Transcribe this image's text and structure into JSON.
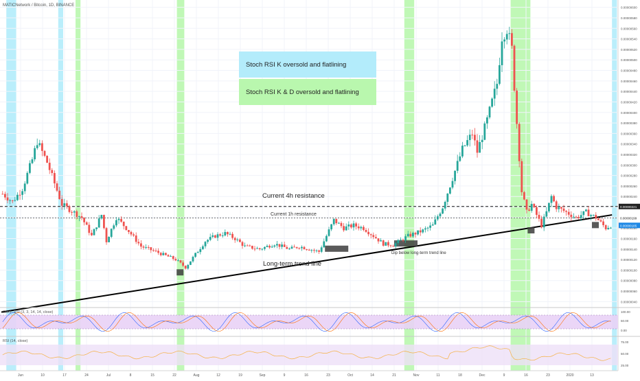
{
  "header": {
    "symbol": "MATICNetwork / Bitcoin, 1D, BINANCE"
  },
  "legend": {
    "k_label": "Stoch RSI K oversold and flatlining",
    "kd_label": "Stoch RSI K & D oversold and flatlining",
    "k_color": "#b3ecfb",
    "kd_color": "#b9f7ae"
  },
  "annotations": {
    "res4h": "Current 4h resistance",
    "res1h": "Current 1h resistance",
    "trend": "Long-term trend line",
    "dip": "Dip below long-term trend line"
  },
  "price_axis": {
    "ticks": [
      "0.00000600",
      "0.00000580",
      "0.00000560",
      "0.00000540",
      "0.00000520",
      "0.00000500",
      "0.00000480",
      "0.00000460",
      "0.00000440",
      "0.00000420",
      "0.00000400",
      "0.00000380",
      "0.00000360",
      "0.00000340",
      "0.00000320",
      "0.00000300",
      "0.00000280",
      "0.00000260",
      "0.00000240",
      "0.00000220",
      "0.00000200",
      "0.00000180",
      "0.00000160",
      "0.00000140",
      "0.00000120",
      "0.00000100",
      "0.00000080",
      "0.00000060",
      "0.00000040"
    ],
    "badge_4h": "0.00000221",
    "badge_1h": "0.00000199",
    "badge_last": "0.00000185"
  },
  "x_axis": {
    "labels": [
      "Jun",
      "10",
      "17",
      "24",
      "Jul",
      "8",
      "15",
      "22",
      "Aug",
      "12",
      "19",
      "Sep",
      "9",
      "16",
      "23",
      "Oct",
      "14",
      "21",
      "Nov",
      "11",
      "18",
      "Dec",
      "9",
      "16",
      "23",
      "2020",
      "13"
    ]
  },
  "stoch_panel": {
    "title": "Stoch RSI (3, 3, 14, 14, close)",
    "ticks": [
      "100.00",
      "50.00",
      "0.00"
    ]
  },
  "rsi_panel": {
    "title": "RSI (14, close)",
    "ticks": [
      "75.00",
      "50.00",
      "25.00"
    ]
  },
  "chart_data": {
    "type": "candlestick",
    "title": "MATICNetwork / Bitcoin, 1D, BINANCE",
    "ylim": [
      3e-07,
      6.1e-06
    ],
    "price_path": [
      [
        0,
        2.45e-06
      ],
      [
        4,
        2.3e-06
      ],
      [
        8,
        2.55e-06
      ],
      [
        12,
        3.1e-06
      ],
      [
        14,
        3.45e-06
      ],
      [
        18,
        3.05e-06
      ],
      [
        24,
        2.25e-06
      ],
      [
        32,
        2e-06
      ],
      [
        36,
        1.65e-06
      ],
      [
        40,
        2.05e-06
      ],
      [
        42,
        1.55e-06
      ],
      [
        46,
        2e-06
      ],
      [
        50,
        1.8e-06
      ],
      [
        56,
        1.45e-06
      ],
      [
        62,
        1.35e-06
      ],
      [
        70,
        1.2e-06
      ],
      [
        74,
        1.05e-06
      ],
      [
        78,
        1.3e-06
      ],
      [
        82,
        1.55e-06
      ],
      [
        86,
        1.65e-06
      ],
      [
        90,
        1.7e-06
      ],
      [
        94,
        1.6e-06
      ],
      [
        98,
        1.45e-06
      ],
      [
        104,
        1.4e-06
      ],
      [
        110,
        1.5e-06
      ],
      [
        116,
        1.4e-06
      ],
      [
        120,
        1.45e-06
      ],
      [
        124,
        1.4e-06
      ],
      [
        128,
        1.35e-06
      ],
      [
        130,
        1.55e-06
      ],
      [
        134,
        1.95e-06
      ],
      [
        138,
        1.8e-06
      ],
      [
        142,
        1.85e-06
      ],
      [
        146,
        1.8e-06
      ],
      [
        150,
        1.65e-06
      ],
      [
        154,
        1.5e-06
      ],
      [
        158,
        1.48e-06
      ],
      [
        164,
        1.65e-06
      ],
      [
        170,
        1.75e-06
      ],
      [
        174,
        1.85e-06
      ],
      [
        178,
        2.2e-06
      ],
      [
        182,
        2.75e-06
      ],
      [
        186,
        3.3e-06
      ],
      [
        190,
        3.6e-06
      ],
      [
        192,
        3.25e-06
      ],
      [
        196,
        3.85e-06
      ],
      [
        200,
        4.55e-06
      ],
      [
        202,
        5.45e-06
      ],
      [
        204,
        5.6e-06
      ],
      [
        206,
        5.2e-06
      ],
      [
        208,
        3.8e-06
      ],
      [
        210,
        2.5e-06
      ],
      [
        212,
        2.1e-06
      ],
      [
        214,
        2.25e-06
      ],
      [
        218,
        1.85e-06
      ],
      [
        220,
        2.1e-06
      ],
      [
        222,
        2.4e-06
      ],
      [
        224,
        2.2e-06
      ],
      [
        228,
        2.1e-06
      ],
      [
        232,
        2e-06
      ],
      [
        236,
        2.1e-06
      ],
      [
        240,
        2e-06
      ],
      [
        242,
        1.9e-06
      ],
      [
        244,
        1.8e-06
      ],
      [
        246,
        1.85e-06
      ]
    ],
    "resistance_4h": 2.21e-06,
    "resistance_1h": 1.99e-06,
    "last_price": 1.85e-06,
    "trend_line": [
      [
        0,
        2e-07
      ],
      [
        247,
        2.05e-06
      ]
    ],
    "stoch_k_zones": [
      [
        2,
        5
      ],
      [
        23,
        24
      ],
      [
        247,
        248
      ]
    ],
    "stoch_kd_zones": [
      [
        30,
        31
      ],
      [
        71,
        73
      ],
      [
        163,
        166
      ],
      [
        206,
        213
      ]
    ]
  }
}
